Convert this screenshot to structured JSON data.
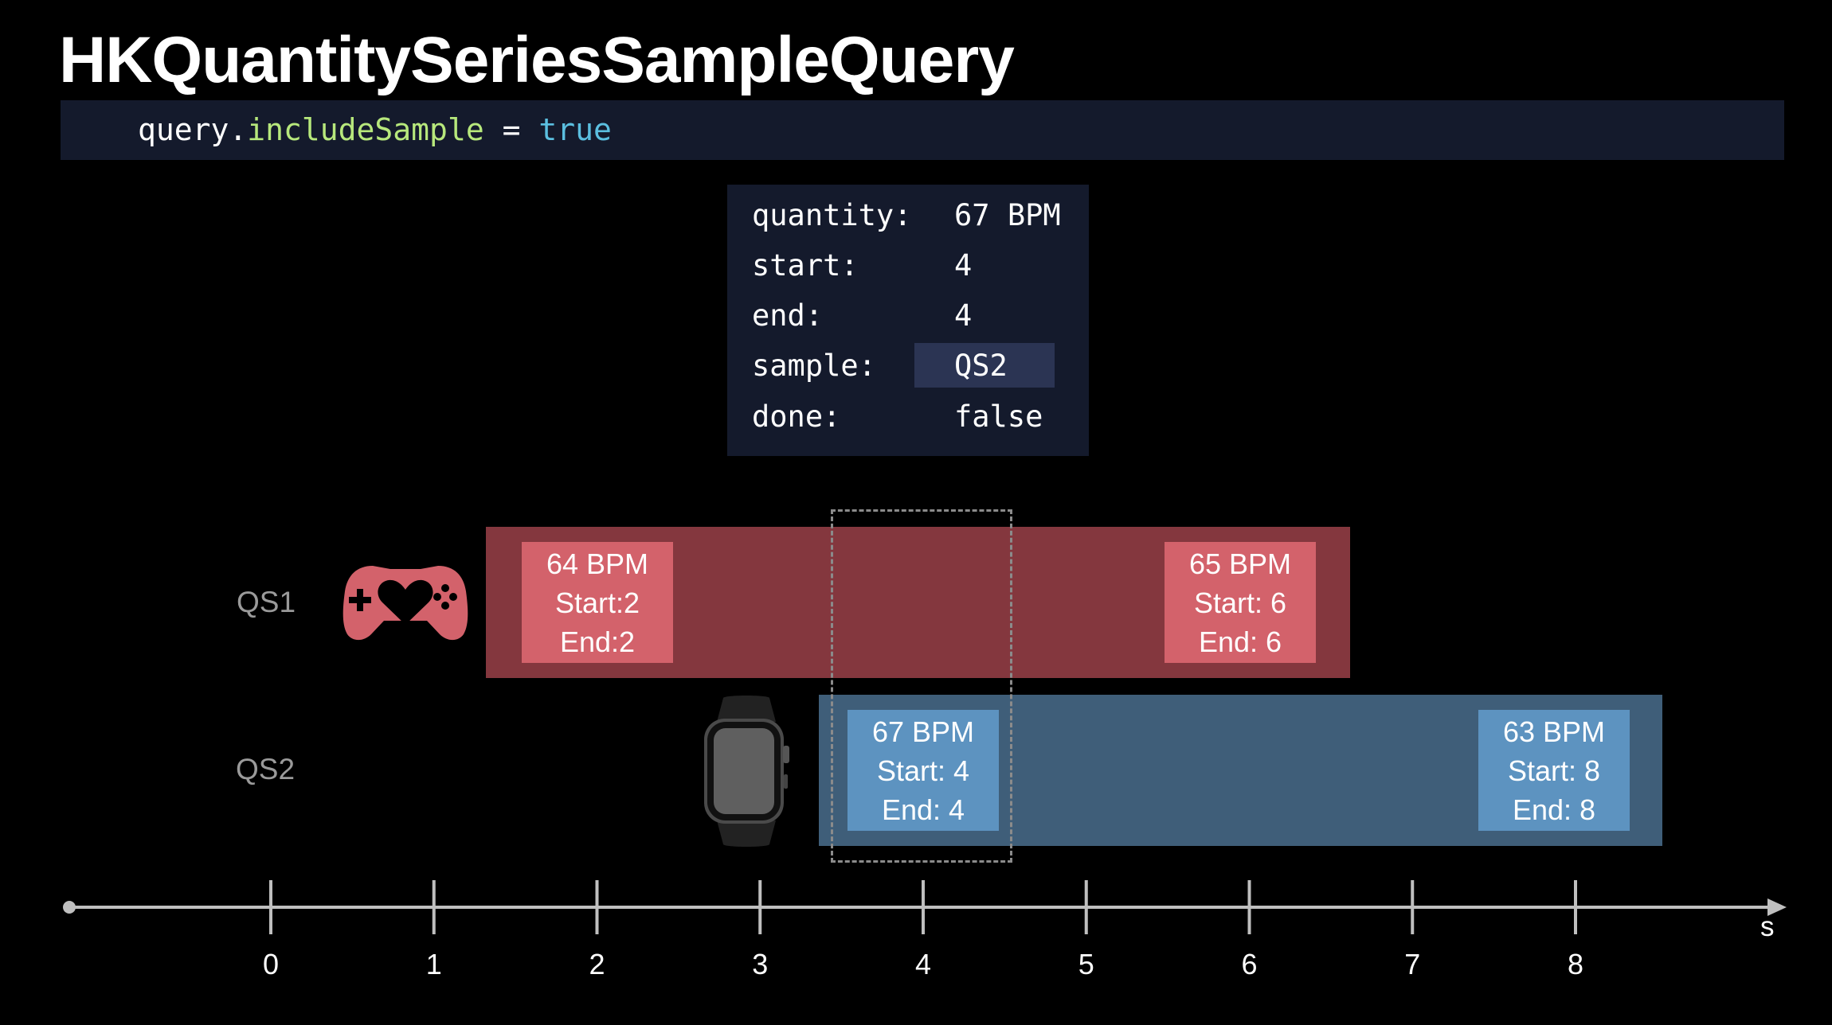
{
  "title": "HKQuantitySeriesSampleQuery",
  "code": {
    "object": "query",
    "dot": ".",
    "property": "includeSample",
    "operator": " = ",
    "value": "true"
  },
  "result": {
    "rows": [
      {
        "key": "quantity:",
        "value": "67 BPM"
      },
      {
        "key": "start:",
        "value": "4"
      },
      {
        "key": "end:",
        "value": "4"
      },
      {
        "key": "sample:",
        "value": "QS2"
      },
      {
        "key": "done:",
        "value": "false"
      }
    ]
  },
  "series": [
    {
      "label": "QS1",
      "icon": "game-controller-heart-icon",
      "color": "#84373e",
      "sample_color": "#d3626b",
      "samples": [
        {
          "value": "64 BPM",
          "start": "Start:2",
          "end": "End:2"
        },
        {
          "value": "65 BPM",
          "start": "Start: 6",
          "end": "End: 6"
        }
      ]
    },
    {
      "label": "QS2",
      "icon": "apple-watch-icon",
      "color": "#3f5e79",
      "sample_color": "#5d93c0",
      "samples": [
        {
          "value": "67 BPM",
          "start": "Start: 4",
          "end": "End: 4"
        },
        {
          "value": "63 BPM",
          "start": "Start: 8",
          "end": "End: 8"
        }
      ]
    }
  ],
  "axis": {
    "ticks": [
      "0",
      "1",
      "2",
      "3",
      "4",
      "5",
      "6",
      "7",
      "8"
    ],
    "unit": "s"
  }
}
